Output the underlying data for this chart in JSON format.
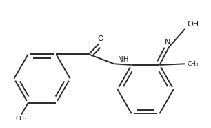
{
  "bg_color": "#ffffff",
  "line_color": "#2a2a2a",
  "text_color": "#1a1a2e",
  "bond_lw": 1.4,
  "figsize": [
    3.06,
    1.85
  ],
  "dpi": 100,
  "xlim": [
    0.0,
    1.0
  ],
  "ylim": [
    0.0,
    0.62
  ]
}
